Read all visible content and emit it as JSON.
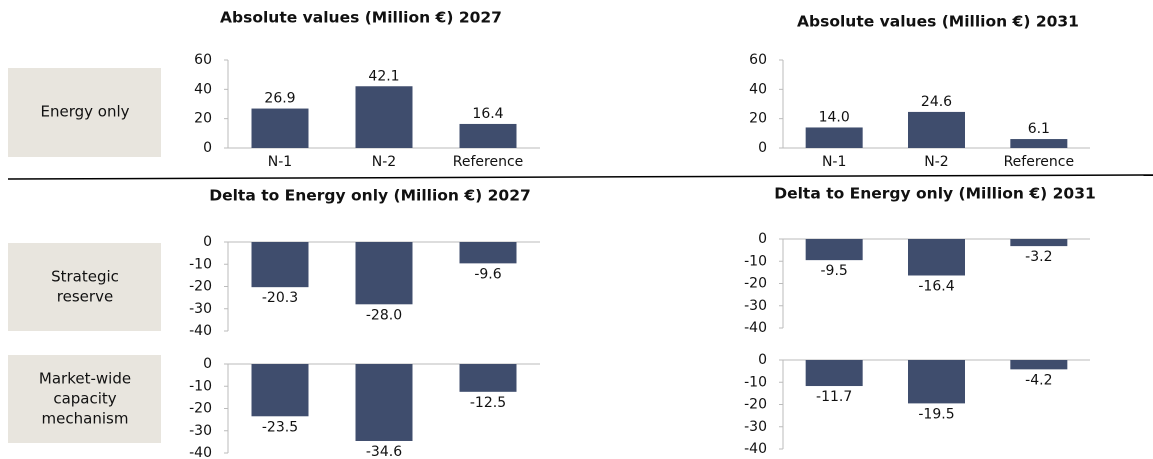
{
  "titles": [
    "Absolute values (Million €) 2027",
    "Absolute values (Million €) 2031",
    "Delta to Energy only (Million €) 2027",
    "Delta to Energy only (Million €) 2031"
  ],
  "row_labels": [
    [
      "Energy only"
    ],
    [
      "Strategic",
      "reserve"
    ],
    [
      "Market-wide",
      "capacity",
      "mechanism"
    ]
  ],
  "chart_data": [
    {
      "type": "bar",
      "categories": [
        "N-1",
        "N-2",
        "Reference"
      ],
      "values": [
        26.9,
        42.1,
        16.4
      ],
      "value_labels": [
        "26.9",
        "42.1",
        "16.4"
      ],
      "color": "#3f4d6d",
      "ylim": [
        0,
        60
      ],
      "yticks": [
        0,
        20,
        40,
        60
      ]
    },
    {
      "type": "bar",
      "categories": [
        "N-1",
        "N-2",
        "Reference"
      ],
      "values": [
        14.0,
        24.6,
        6.1
      ],
      "value_labels": [
        "14.0",
        "24.6",
        "6.1"
      ],
      "color": "#3f4d6d",
      "ylim": [
        0,
        60
      ],
      "yticks": [
        0,
        20,
        40,
        60
      ]
    },
    {
      "type": "bar",
      "categories": [
        null,
        null,
        null
      ],
      "values": [
        -20.3,
        -28.0,
        -9.6
      ],
      "value_labels": [
        "-20.3",
        "-28.0",
        "-9.6"
      ],
      "color": "#3f4d6d",
      "ylim": [
        -40,
        0
      ],
      "yticks": [
        -40,
        -30,
        -20,
        -10,
        0
      ]
    },
    {
      "type": "bar",
      "categories": [
        null,
        null,
        null
      ],
      "values": [
        -9.5,
        -16.4,
        -3.2
      ],
      "value_labels": [
        "-9.5",
        "-16.4",
        "-3.2"
      ],
      "color": "#3f4d6d",
      "ylim": [
        -40,
        0
      ],
      "yticks": [
        -40,
        -30,
        -20,
        -10,
        0
      ]
    },
    {
      "type": "bar",
      "categories": [
        null,
        null,
        null
      ],
      "values": [
        -23.5,
        -34.6,
        -12.5
      ],
      "value_labels": [
        "-23.5",
        "-34.6",
        "-12.5"
      ],
      "color": "#3f4d6d",
      "ylim": [
        -40,
        0
      ],
      "yticks": [
        -40,
        -30,
        -20,
        -10,
        0
      ]
    },
    {
      "type": "bar",
      "categories": [
        null,
        null,
        null
      ],
      "values": [
        -11.7,
        -19.5,
        -4.2
      ],
      "value_labels": [
        "-11.7",
        "-19.5",
        "-4.2"
      ],
      "color": "#3f4d6d",
      "ylim": [
        -40,
        0
      ],
      "yticks": [
        -40,
        -30,
        -20,
        -10,
        0
      ]
    }
  ]
}
